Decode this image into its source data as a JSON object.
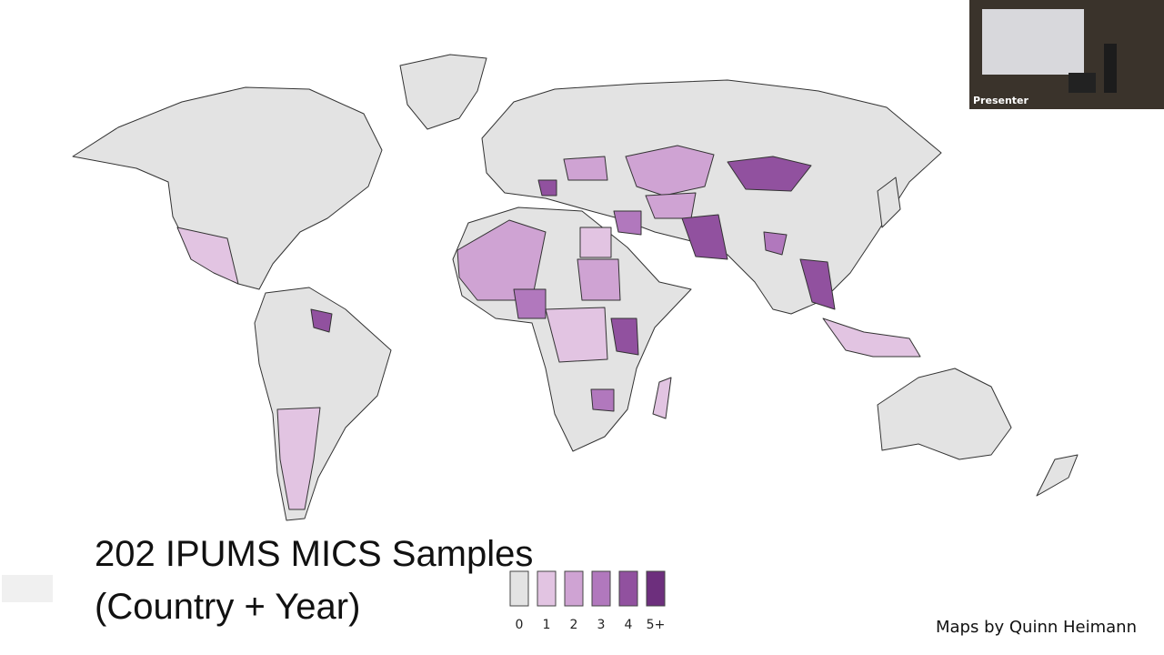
{
  "slide": {
    "title_lines": [
      "202 IPUMS MICS Samples",
      "(Country + Year)"
    ],
    "legend": {
      "items": [
        {
          "label": "0",
          "color": "#e3e3e3"
        },
        {
          "label": "1",
          "color": "#e2c4e2"
        },
        {
          "label": "2",
          "color": "#cfa3d3"
        },
        {
          "label": "3",
          "color": "#b178bd"
        },
        {
          "label": "4",
          "color": "#91519f"
        },
        {
          "label": "5+",
          "color": "#6d2f7d"
        }
      ]
    },
    "credit": "Maps by Quinn Heimann"
  },
  "presenter_video": {
    "label": "Presenter"
  }
}
